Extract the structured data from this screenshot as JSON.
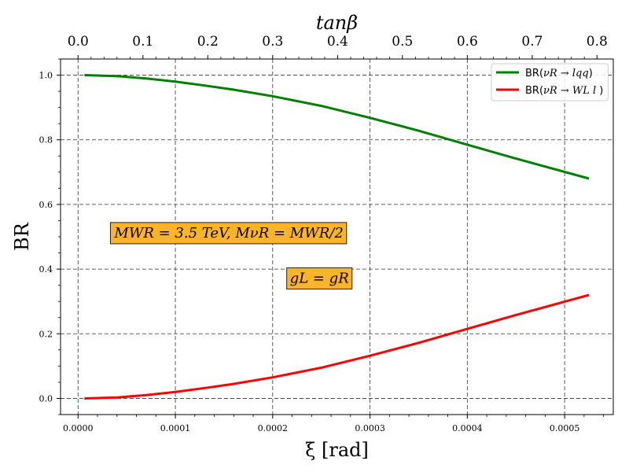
{
  "chart_data": {
    "type": "line",
    "xlabel": "ξ [rad]",
    "ylabel": "BR",
    "top_axis_label": "tanβ",
    "xlim": [
      -1.8e-05,
      0.00055
    ],
    "ylim": [
      -0.05,
      1.05
    ],
    "x_ticks": [
      0.0,
      0.0001,
      0.0002,
      0.0003,
      0.0004,
      0.0005
    ],
    "x_tick_labels": [
      "0.0000",
      "0.0001",
      "0.0002",
      "0.0003",
      "0.0004",
      "0.0005"
    ],
    "y_ticks": [
      0.0,
      0.2,
      0.4,
      0.6,
      0.8,
      1.0
    ],
    "y_tick_labels": [
      "0.0",
      "0.2",
      "0.4",
      "0.6",
      "0.8",
      "1.0"
    ],
    "top_ticks": [
      0.0,
      0.1,
      0.2,
      0.3,
      0.4,
      0.5,
      0.6,
      0.7,
      0.8
    ],
    "top_tick_labels": [
      "0.0",
      "0.1",
      "0.2",
      "0.3",
      "0.4",
      "0.5",
      "0.6",
      "0.7",
      "0.8"
    ],
    "top_tick_xi": [
      0.0,
      6.67e-05,
      0.0001333,
      0.0002,
      0.0002667,
      0.0003333,
      0.0004,
      0.0004667,
      0.0005333
    ],
    "grid": true,
    "legend_position": "top-right",
    "colors": {
      "green": "#008000",
      "red": "#ff0000",
      "annotation_fill": "#ffb327"
    },
    "series": [
      {
        "name": "BR(νR → lqq)",
        "color": "#008000",
        "x": [
          6.58e-06,
          4e-05,
          7e-05,
          0.0001,
          0.00013,
          0.00016,
          0.0002,
          0.00025,
          0.0003,
          0.00035,
          0.0004,
          0.00045,
          0.000525
        ],
        "y": [
          1.0,
          0.997,
          0.99,
          0.98,
          0.968,
          0.955,
          0.935,
          0.905,
          0.868,
          0.828,
          0.785,
          0.742,
          0.68
        ]
      },
      {
        "name": "BR(νR → WL l)",
        "color": "#ff0000",
        "x": [
          6.58e-06,
          4e-05,
          7e-05,
          0.0001,
          0.00013,
          0.00016,
          0.0002,
          0.00025,
          0.0003,
          0.00035,
          0.0004,
          0.00045,
          0.000525
        ],
        "y": [
          0.0,
          0.003,
          0.01,
          0.02,
          0.032,
          0.045,
          0.065,
          0.095,
          0.132,
          0.172,
          0.215,
          0.258,
          0.32
        ]
      }
    ],
    "legend": [
      {
        "pre": "BR(",
        "math": "νR → lqq",
        "post": ")",
        "color": "#008000"
      },
      {
        "pre": "BR(",
        "math": "νR → WL l",
        "post": " )",
        "color": "#ff0000"
      }
    ],
    "annotations": [
      {
        "text": "MWR = 3.5 TeV, MνR = MWR/2",
        "x": 0.000155,
        "y": 0.51
      },
      {
        "text": "gL = gR",
        "x": 0.000248,
        "y": 0.37
      }
    ]
  }
}
